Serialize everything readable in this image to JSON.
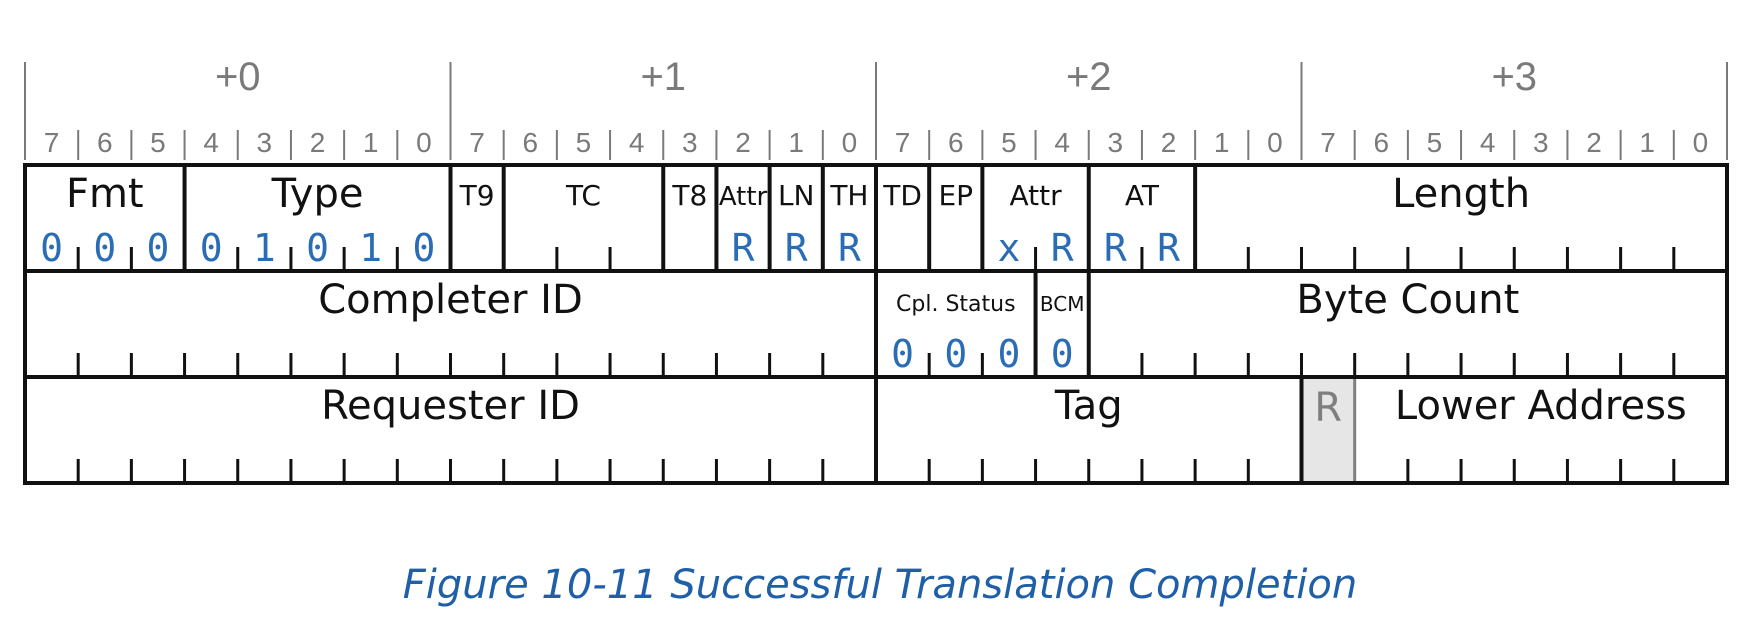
{
  "bytes": [
    "+0",
    "+1",
    "+2",
    "+3"
  ],
  "bits": [
    "7",
    "6",
    "5",
    "4",
    "3",
    "2",
    "1",
    "0"
  ],
  "rows": [
    [
      {
        "name": "Fmt",
        "from": 0,
        "to": 2,
        "size": 40,
        "values": [
          "0",
          "0",
          "0"
        ]
      },
      {
        "name": "Type",
        "from": 3,
        "to": 7,
        "size": 40,
        "values": [
          "0",
          "1",
          "0",
          "1",
          "0"
        ]
      },
      {
        "name": "T9",
        "from": 8,
        "to": 8,
        "size": 28
      },
      {
        "name": "TC",
        "from": 9,
        "to": 11,
        "size": 28
      },
      {
        "name": "T8",
        "from": 12,
        "to": 12,
        "size": 28
      },
      {
        "name": "Attr",
        "from": 13,
        "to": 13,
        "size": 26,
        "values": [
          "R"
        ]
      },
      {
        "name": "LN",
        "from": 14,
        "to": 14,
        "size": 28,
        "values": [
          "R"
        ]
      },
      {
        "name": "TH",
        "from": 15,
        "to": 15,
        "size": 28,
        "values": [
          "R"
        ]
      },
      {
        "name": "TD",
        "from": 16,
        "to": 16,
        "size": 28
      },
      {
        "name": "EP",
        "from": 17,
        "to": 17,
        "size": 28
      },
      {
        "name": "Attr",
        "from": 18,
        "to": 19,
        "size": 28,
        "values": [
          "x",
          "R"
        ]
      },
      {
        "name": "AT",
        "from": 20,
        "to": 21,
        "size": 28,
        "values": [
          "R",
          "R"
        ]
      },
      {
        "name": "Length",
        "from": 22,
        "to": 31,
        "size": 40
      }
    ],
    [
      {
        "name": "Completer ID",
        "from": 0,
        "to": 15,
        "size": 40
      },
      {
        "name": "Cpl. Status",
        "from": 16,
        "to": 18,
        "size": 22,
        "values": [
          "0",
          "0",
          "0"
        ]
      },
      {
        "name": "BCM",
        "from": 19,
        "to": 19,
        "size": 20,
        "values": [
          "0"
        ]
      },
      {
        "name": "Byte Count",
        "from": 20,
        "to": 31,
        "size": 40
      }
    ],
    [
      {
        "name": "Requester ID",
        "from": 0,
        "to": 15,
        "size": 40
      },
      {
        "name": "Tag",
        "from": 16,
        "to": 23,
        "size": 40
      },
      {
        "name": "R",
        "from": 24,
        "to": 24,
        "size": 40,
        "reserved": true
      },
      {
        "name": "Lower Address",
        "from": 25,
        "to": 31,
        "size": 40
      }
    ]
  ],
  "caption": "Figure  10-11  Successful Translation Completion",
  "colors": {
    "border": "#111111",
    "header_text": "#7a7a7a",
    "value_text": "#2a6db5",
    "reserved_fill": "#e6e6e6",
    "reserved_text": "#7f7f7f",
    "caption": "#1f5fa8"
  }
}
